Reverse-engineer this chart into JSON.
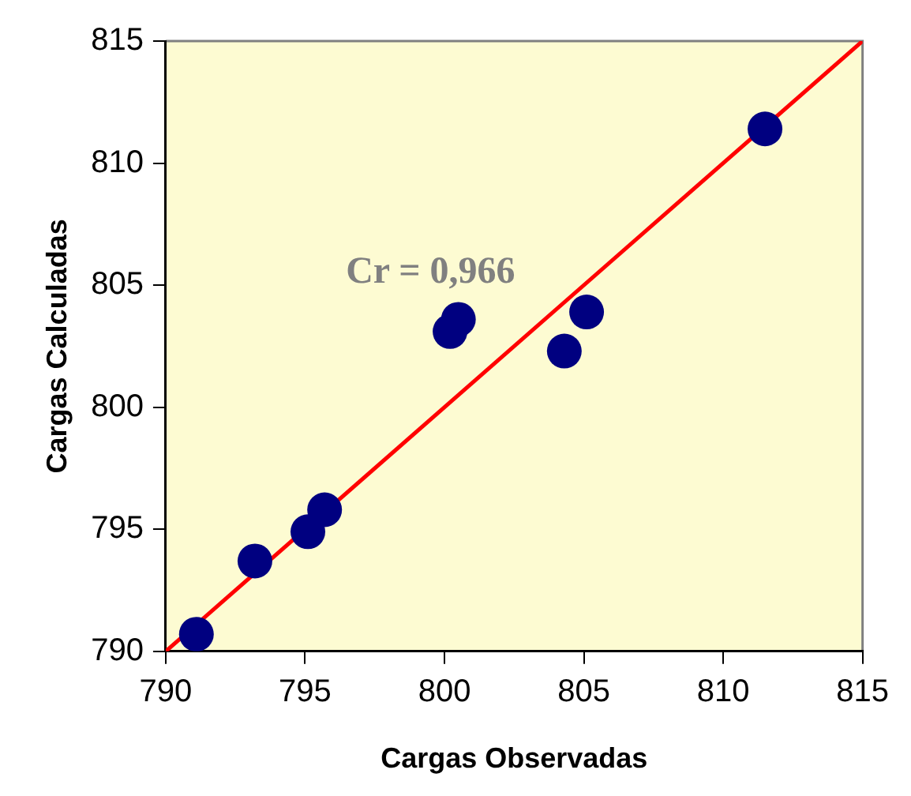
{
  "chart_data": {
    "type": "scatter",
    "xlabel": "Cargas Observadas",
    "ylabel": "Cargas Calculadas",
    "series": [
      {
        "type": "scatter",
        "color": "#000080",
        "x": [
          791.1,
          793.2,
          795.1,
          795.7,
          800.2,
          800.5,
          804.3,
          805.1,
          811.5
        ],
        "values": [
          790.7,
          793.7,
          794.9,
          795.8,
          803.1,
          803.6,
          802.3,
          803.9,
          811.4
        ],
        "marker": "circle"
      },
      {
        "type": "line",
        "color": "#ff0000",
        "x": [
          790,
          815
        ],
        "values": [
          790,
          815
        ],
        "marker": "none",
        "line_style": "solid"
      }
    ],
    "annotations": [
      "Cr = 0,966"
    ],
    "xlim": [
      790,
      815
    ],
    "xticks": [
      790,
      795,
      800,
      805,
      810,
      815
    ],
    "ylim": [
      790,
      815
    ],
    "yticks": [
      790,
      795,
      800,
      805,
      810,
      815
    ],
    "grid": false,
    "legend": false
  }
}
